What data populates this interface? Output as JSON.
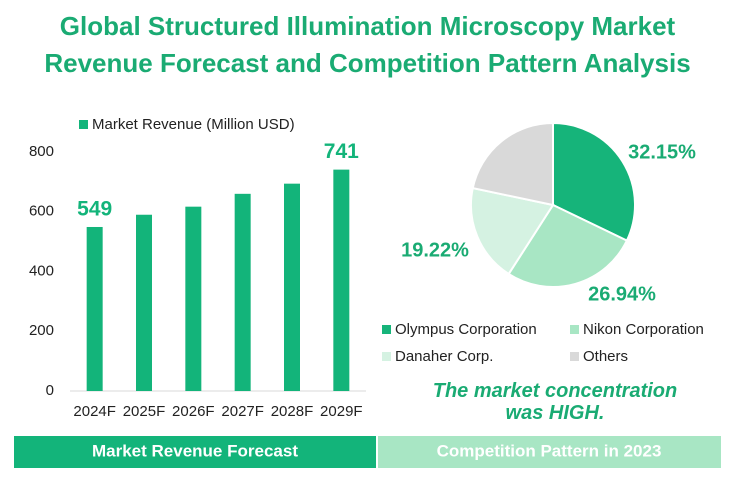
{
  "title": "Global Structured Illumination Microscopy Market Revenue Forecast and Competition Pattern Analysis",
  "chart_data": [
    {
      "type": "bar",
      "footer": "Market Revenue Forecast",
      "categories": [
        "2024F",
        "2025F",
        "2026F",
        "2027F",
        "2028F",
        "2029F"
      ],
      "series": [
        {
          "name": "Market Revenue (Million USD)",
          "color": "#13b47a",
          "values": [
            549,
            590,
            617,
            660,
            694,
            741
          ],
          "value_labels": [
            "549",
            null,
            null,
            null,
            null,
            "741"
          ]
        }
      ],
      "ylim": [
        0,
        800
      ],
      "yticks": [
        0,
        200,
        400,
        600,
        800
      ],
      "grid": false
    },
    {
      "type": "pie",
      "footer": "Competition Pattern in 2023",
      "annotation": "The market concentration was HIGH.",
      "categories": [
        "Olympus Corporation",
        "Nikon Corporation",
        "Danaher Corp.",
        "Others"
      ],
      "values": [
        32.15,
        26.94,
        19.22,
        21.69
      ],
      "value_labels": [
        "32.15%",
        "26.94%",
        "19.22%",
        null
      ],
      "colors": [
        "#16b47a",
        "#a8e6c4",
        "#d5f2e2",
        "#d9d9d9"
      ]
    }
  ]
}
